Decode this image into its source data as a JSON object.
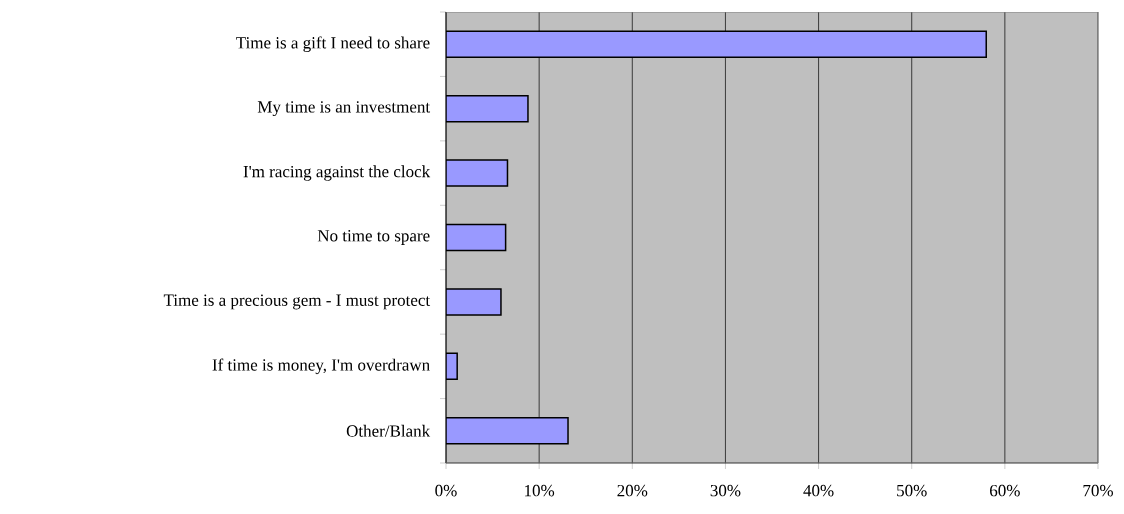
{
  "chart_data": {
    "type": "bar",
    "orientation": "horizontal",
    "categories": [
      "Time is a gift I need to share",
      "My time is an investment",
      "I'm racing against the clock",
      "No time to spare",
      "Time is a precious gem - I must protect",
      "If time is money, I'm overdrawn",
      "Other/Blank"
    ],
    "values": [
      58.0,
      8.8,
      6.6,
      6.4,
      5.9,
      1.2,
      13.1
    ],
    "color": "#9999ff",
    "xlim": [
      0,
      70
    ],
    "xticks": [
      {
        "value": 0,
        "label": "0%"
      },
      {
        "value": 10,
        "label": "10%"
      },
      {
        "value": 20,
        "label": "20%"
      },
      {
        "value": 30,
        "label": "30%"
      },
      {
        "value": 40,
        "label": "40%"
      },
      {
        "value": 50,
        "label": "50%"
      },
      {
        "value": 60,
        "label": "60%"
      },
      {
        "value": 70,
        "label": "70%"
      }
    ],
    "grid": "x"
  }
}
